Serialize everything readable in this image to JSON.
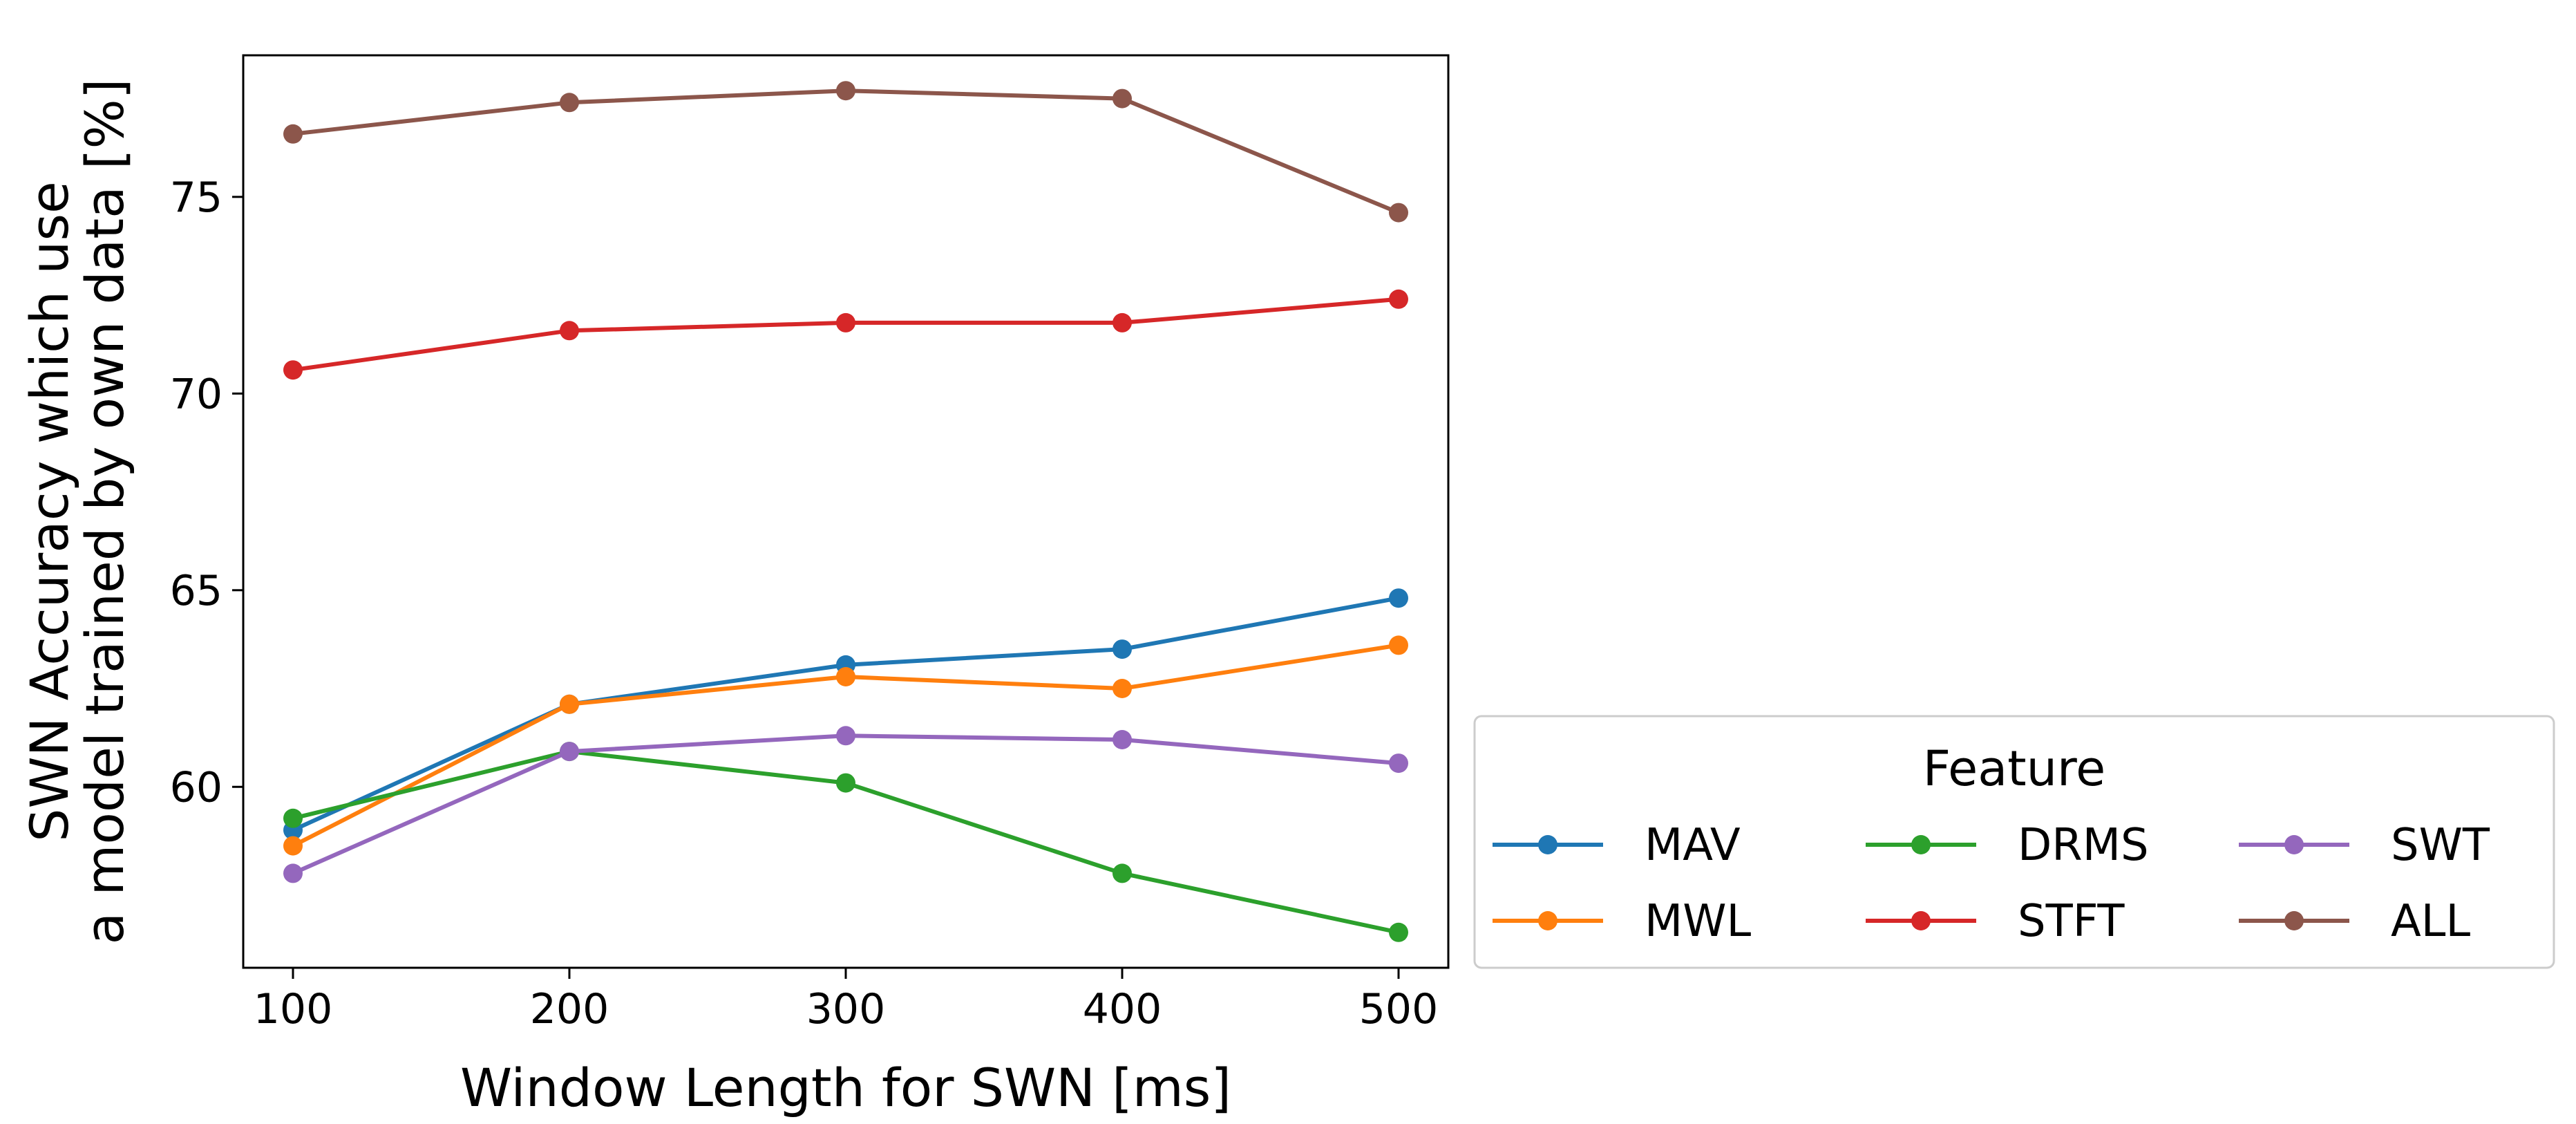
{
  "chart_data": {
    "type": "line",
    "title": "",
    "xlabel": "Window Length for SWN [ms]",
    "ylabel": [
      "SWN Accuracy which use",
      "a model trained by own data [%]"
    ],
    "x": [
      100,
      200,
      300,
      400,
      500
    ],
    "xlim": [
      82,
      518
    ],
    "xticks": [
      100,
      200,
      300,
      400,
      500
    ],
    "ylim": [
      55.4,
      78.6
    ],
    "yticks": [
      60,
      65,
      70,
      75
    ],
    "grid": false,
    "legend": {
      "title": "Feature",
      "placement": "outside-lower-right",
      "columns": 3
    },
    "series": [
      {
        "name": "MAV",
        "color": "#1f77b4",
        "values": [
          58.9,
          62.1,
          63.1,
          63.5,
          64.8
        ]
      },
      {
        "name": "MWL",
        "color": "#ff7f0e",
        "values": [
          58.5,
          62.1,
          62.8,
          62.5,
          63.6
        ]
      },
      {
        "name": "DRMS",
        "color": "#2ca02c",
        "values": [
          59.2,
          60.9,
          60.1,
          57.8,
          56.3
        ]
      },
      {
        "name": "STFT",
        "color": "#d62728",
        "values": [
          70.6,
          71.6,
          71.8,
          71.8,
          72.4
        ]
      },
      {
        "name": "SWT",
        "color": "#9467bd",
        "values": [
          57.8,
          60.9,
          61.3,
          61.2,
          60.6
        ]
      },
      {
        "name": "ALL",
        "color": "#8c564b",
        "values": [
          76.6,
          77.4,
          77.7,
          77.5,
          74.6
        ]
      }
    ]
  }
}
